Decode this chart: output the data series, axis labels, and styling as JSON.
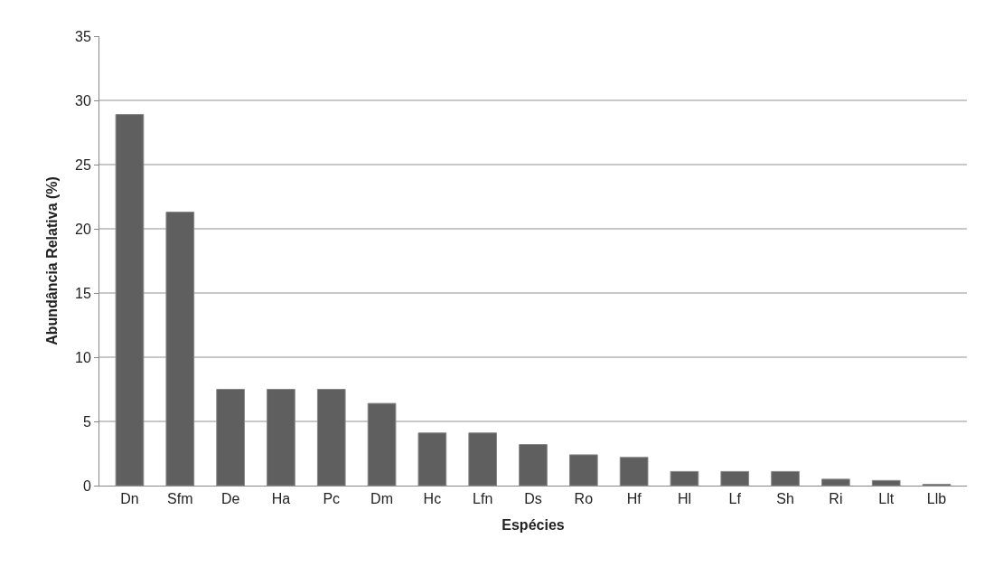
{
  "chart_data": {
    "type": "bar",
    "xlabel": "Espécies",
    "ylabel": "Abundância Relativa (%)",
    "categories": [
      "Dn",
      "Sfm",
      "De",
      "Ha",
      "Pc",
      "Dm",
      "Hc",
      "Lfn",
      "Ds",
      "Ro",
      "Hf",
      "Hl",
      "Lf",
      "Sh",
      "Ri",
      "Llt",
      "Llb"
    ],
    "values": [
      28.9,
      21.3,
      7.5,
      7.5,
      7.5,
      6.4,
      4.1,
      4.1,
      3.2,
      2.4,
      2.2,
      1.1,
      1.1,
      1.1,
      0.5,
      0.4,
      0.1
    ],
    "color": "#5f5f5f",
    "ylim": [
      0,
      35
    ],
    "yticks": [
      0,
      5,
      10,
      15,
      20,
      25,
      30,
      35
    ],
    "grid": "y",
    "legend": false
  }
}
